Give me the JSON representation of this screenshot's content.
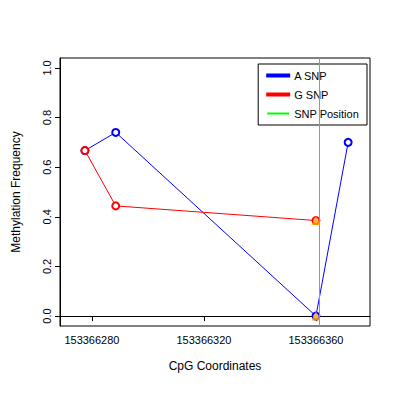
{
  "chart_data": {
    "type": "line",
    "x_label": "CpG Coordinates",
    "y_label": "Methylation Frequency",
    "series": [
      {
        "name": "A SNP",
        "color": "#0000ff",
        "marker": "circle",
        "line_style": "solid",
        "x": [
          153366277.5,
          153366288.5,
          153366360,
          153366371.5
        ],
        "values": [
          0.667,
          0.74,
          0.0,
          0.7
        ]
      },
      {
        "name": "G SNP",
        "color": "#ff0000",
        "marker": "circle",
        "line_style": "solid",
        "x": [
          153366277.5,
          153366288.5,
          153366360
        ],
        "values": [
          0.667,
          0.444,
          0.385
        ]
      },
      {
        "name": "SNP Position",
        "color": "#00ff00",
        "type": "vline",
        "line_style": "solid",
        "x": [
          153366361
        ]
      }
    ],
    "snp_marks": {
      "color": "#ffa500",
      "marker": "triangle",
      "x": [
        153366360,
        153366360
      ],
      "values": [
        0.385,
        0.0
      ]
    },
    "xlim": [
      153366268.6,
      153366379.3
    ],
    "xticks": [
      153366280,
      153366320,
      153366360
    ],
    "ylim": [
      -0.04,
      1.04
    ],
    "yticks": [
      {
        "value": 0,
        "label": "0.0"
      },
      {
        "value": 0.2,
        "label": "0.2"
      },
      {
        "value": 0.4,
        "label": "0.4"
      },
      {
        "value": 0.6,
        "label": "0.6"
      },
      {
        "value": 0.8,
        "label": "0.8"
      },
      {
        "value": 1,
        "label": "1.0"
      }
    ],
    "grid": false,
    "legend": "right"
  }
}
